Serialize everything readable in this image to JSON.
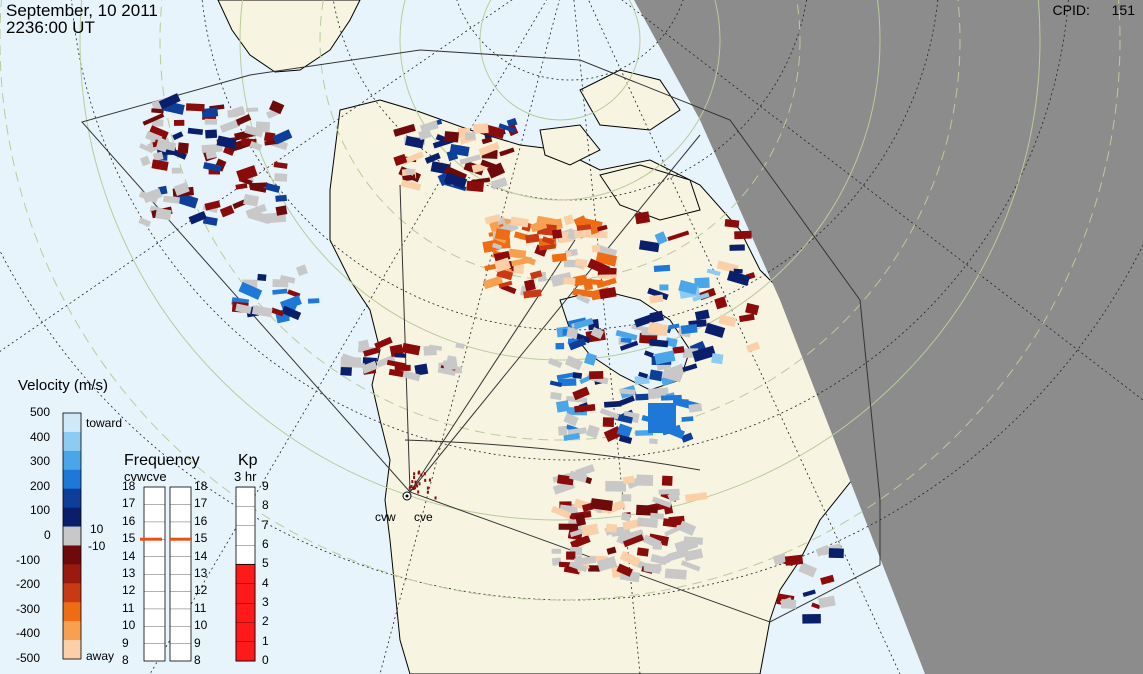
{
  "header": {
    "date": "September, 10 2011",
    "time": "2236:00 UT",
    "cpid_label": "CPID:",
    "cpid_value": "151"
  },
  "velocity_scale": {
    "title": "Velocity (m/s)",
    "ticks": [
      "500",
      "400",
      "300",
      "200",
      "100",
      "0",
      "-100",
      "-200",
      "-300",
      "-400",
      "-500"
    ],
    "toward_label": "toward",
    "away_label": "away",
    "threshold_pos": "10",
    "threshold_neg": "-10",
    "colors": [
      "#cfe9f9",
      "#8ecbf2",
      "#4aa6e8",
      "#1e78d8",
      "#0d3f9a",
      "#0a1f6b",
      "#c8c8c8",
      "#6e0a0a",
      "#9a1a10",
      "#c83a14",
      "#ee6c14",
      "#f8a050",
      "#fbd0a8"
    ]
  },
  "frequency": {
    "title": "Frequency",
    "radars": "cvwcve",
    "ticks": [
      "18",
      "17",
      "16",
      "15",
      "14",
      "13",
      "12",
      "11",
      "10",
      "9",
      "8"
    ],
    "cvw_value": 15,
    "cve_value": 15,
    "marker_color": "#e8501a"
  },
  "kp": {
    "title": "Kp",
    "subtitle": "3 hr",
    "ticks": [
      "9",
      "8",
      "7",
      "6",
      "5",
      "4",
      "3",
      "2",
      "1",
      "0"
    ],
    "value": 5,
    "bar_color": "#ff1a1a"
  },
  "radars": [
    {
      "label": "cvw"
    },
    {
      "label": "cve"
    }
  ],
  "map_colors": {
    "ocean": "#e8f4fb",
    "land": "#f7f4e1",
    "night": "#8c8c8c",
    "grid_green": "#b8cc9a"
  }
}
